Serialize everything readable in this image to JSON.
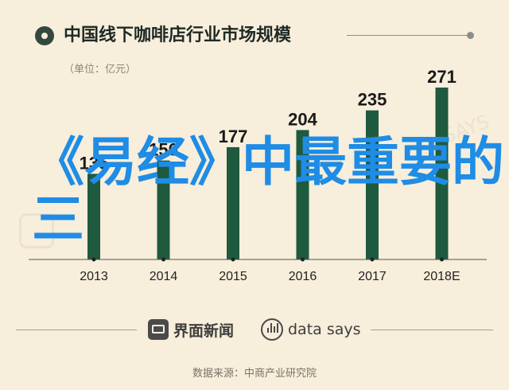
{
  "header": {
    "title": "中国线下咖啡店行业市场规模",
    "unit": "（单位：亿元）"
  },
  "overlay": {
    "text": "《易经》中最重要的三"
  },
  "chart_data": {
    "type": "bar",
    "categories": [
      "2013",
      "2014",
      "2015",
      "2016",
      "2017",
      "2018E"
    ],
    "values": [
      135,
      156,
      177,
      204,
      235,
      271
    ],
    "value_labels": [
      "135",
      "156",
      "177",
      "204",
      "235",
      "271"
    ],
    "title": "中国线下咖啡店行业市场规模",
    "ylabel": "",
    "xlabel": "",
    "ylim": [
      0,
      271
    ],
    "grid": false,
    "bar_color": "#1e5a3e",
    "axis_color": "#555555"
  },
  "footer": {
    "brand_cn": "界面新闻",
    "brand_en": "data says",
    "source": "数据来源：中商产业研究院"
  },
  "watermark": {
    "icon": "jiemian-logo-icon",
    "text": "SAYS"
  },
  "colors": {
    "background": "#f7eedb",
    "overlay_text": "#1f8ce6",
    "header_dot": "#33473f"
  }
}
